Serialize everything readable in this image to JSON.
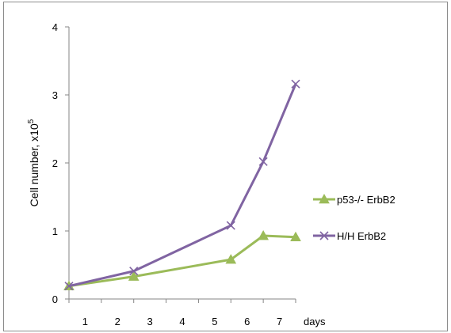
{
  "chart_data": {
    "type": "line",
    "ylabel": "Cell number,  x10",
    "ylabel_superscript": "5",
    "x_axis_unit_label": "days",
    "x_tick_labels": [
      "1",
      "2",
      "3",
      "4",
      "5",
      "6",
      "7"
    ],
    "y_tick_labels": [
      "0",
      "1",
      "2",
      "3",
      "4"
    ],
    "xlim": [
      0,
      7
    ],
    "ylim": [
      0,
      4
    ],
    "grid": false,
    "legend_position": "right",
    "series": [
      {
        "name": "p53-/- ErbB2",
        "color": "#9bbb59",
        "marker": "triangle",
        "x": [
          0,
          2,
          5,
          6,
          7
        ],
        "y": [
          0.19,
          0.33,
          0.58,
          0.93,
          0.91
        ]
      },
      {
        "name": "H/H ErbB2",
        "color": "#8064a2",
        "marker": "x",
        "x": [
          0,
          2,
          5,
          6,
          7
        ],
        "y": [
          0.19,
          0.41,
          1.08,
          2.02,
          3.16
        ]
      }
    ]
  }
}
